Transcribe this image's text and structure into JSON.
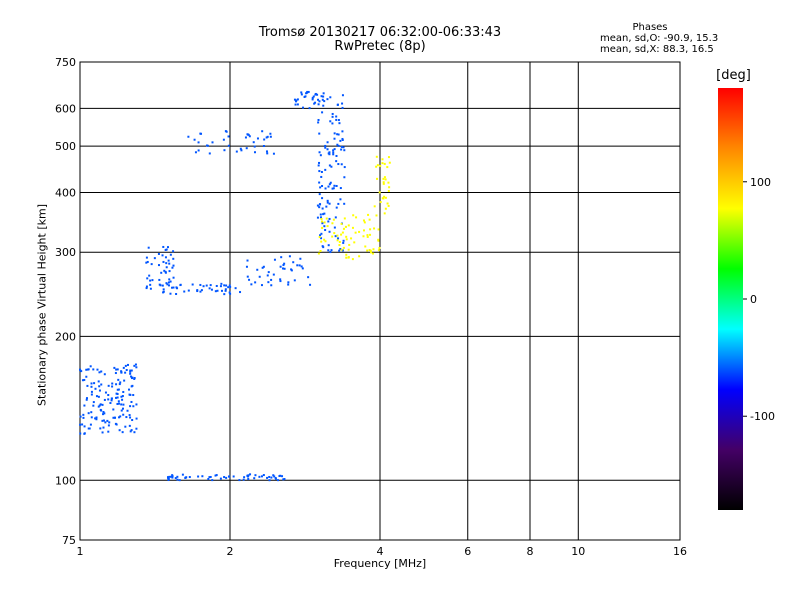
{
  "chart_data": {
    "type": "scatter",
    "title": "Tromsø 20130217 06:32:00-06:33:43",
    "subtitle": "RwPretec (8p)",
    "xlabel": "Frequency [MHz]",
    "ylabel": "Stationary phase Virtual Height [km]",
    "x_scale": "log",
    "y_scale": "log",
    "xlim": [
      1,
      16
    ],
    "ylim": [
      75,
      750
    ],
    "x_ticks": [
      1,
      2,
      4,
      6,
      8,
      10,
      16
    ],
    "x_gridlines": [
      2,
      4,
      6,
      8,
      10,
      16
    ],
    "y_ticks": [
      75,
      100,
      200,
      300,
      400,
      500,
      600,
      750
    ],
    "y_gridlines": [
      100,
      200,
      300,
      400,
      500,
      600
    ],
    "grid": true,
    "phase_stats": {
      "header": "Phases",
      "line_o": "mean, sd,O: -90.9, 15.3",
      "line_x": "mean, sd,X:  88.3, 16.5"
    },
    "colorbar": {
      "title": "[deg]",
      "range": [
        -180,
        180
      ],
      "ticks": [
        100,
        0,
        -100
      ],
      "colors": [
        "#ff0000",
        "#ff8800",
        "#ffff00",
        "#00ff00",
        "#00ffff",
        "#0000ff",
        "#440066",
        "#000000"
      ]
    },
    "series": [
      {
        "color": "#0055ff",
        "segments": [
          {
            "x": [
              1.0,
              1.3
            ],
            "y": [
              125,
              175
            ],
            "n": 160
          },
          {
            "x": [
              1.35,
              1.55
            ],
            "y": [
              250,
              310
            ],
            "n": 50
          },
          {
            "x": [
              1.45,
              2.1
            ],
            "y": [
              245,
              258
            ],
            "n": 40
          },
          {
            "x": [
              2.1,
              2.9
            ],
            "y": [
              255,
              295
            ],
            "n": 40
          },
          {
            "x": [
              3.0,
              3.4
            ],
            "y": [
              300,
              640
            ],
            "n": 120
          },
          {
            "x": [
              1.5,
              2.6
            ],
            "y": [
              100,
              103
            ],
            "n": 60
          },
          {
            "x": [
              1.65,
              2.5
            ],
            "y": [
              480,
              540
            ],
            "n": 40
          },
          {
            "x": [
              2.7,
              3.1
            ],
            "y": [
              600,
              650
            ],
            "n": 30
          }
        ]
      },
      {
        "color": "#ffff00",
        "segments": [
          {
            "x": [
              3.0,
              4.0
            ],
            "y": [
              290,
              360
            ],
            "n": 70
          },
          {
            "x": [
              3.9,
              4.2
            ],
            "y": [
              360,
              480
            ],
            "n": 30
          }
        ]
      }
    ]
  }
}
